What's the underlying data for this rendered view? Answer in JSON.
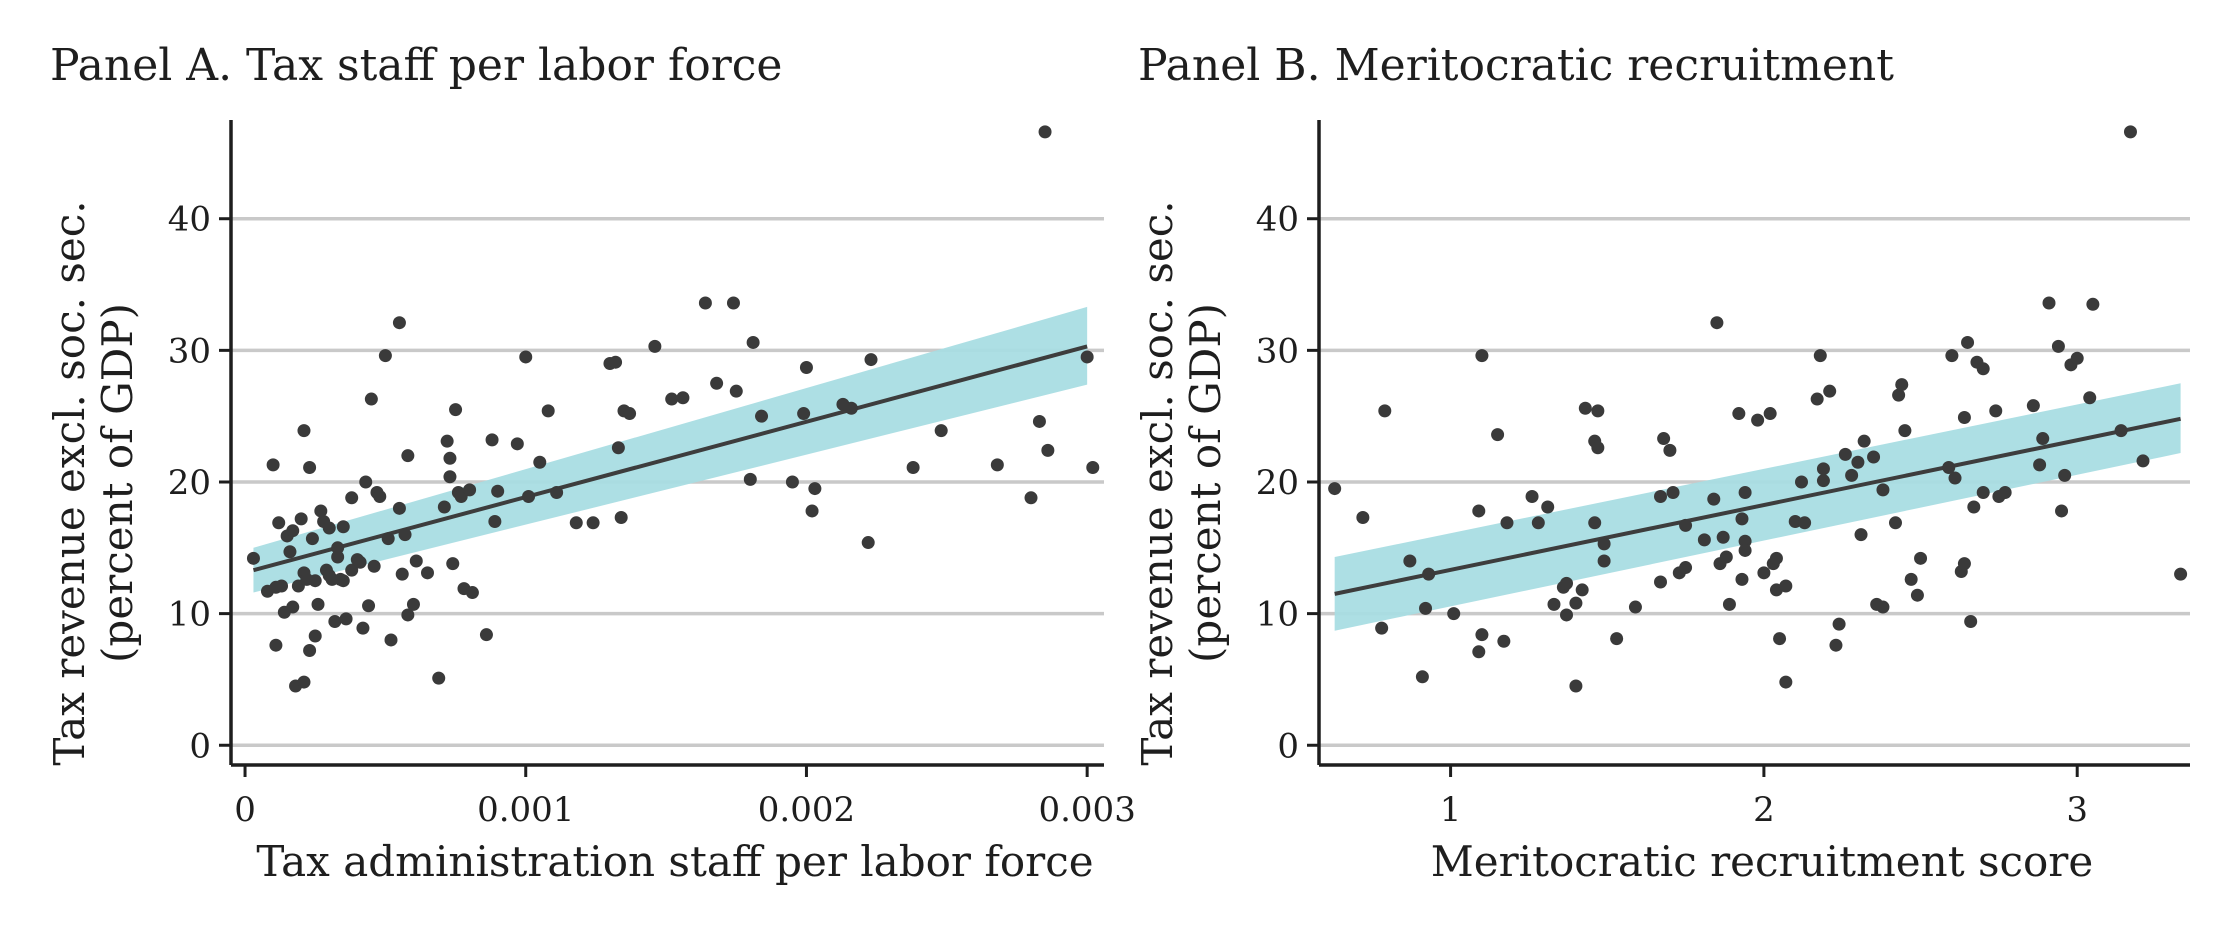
{
  "chart_data": [
    {
      "type": "scatter",
      "title": "Panel A. Tax staff per labor force",
      "xlabel": "Tax administration staff per labor force",
      "ylabel": [
        "Tax revenue excl. soc. sec.",
        "(percent of GDP)"
      ],
      "xlim": [
        -5e-05,
        0.00306
      ],
      "ylim": [
        -1.5,
        47.5
      ],
      "xticks": [
        0,
        0.001,
        0.002,
        0.003
      ],
      "xtick_labels": [
        "0",
        "0.001",
        "0.002",
        "0.003"
      ],
      "yticks": [
        0,
        10,
        20,
        30,
        40
      ],
      "ytick_labels": [
        "0",
        "10",
        "20",
        "30",
        "40"
      ],
      "grid": "horizontal",
      "fit": {
        "x": [
          3e-05,
          0.003
        ],
        "y": [
          13.3,
          30.3
        ]
      },
      "band": {
        "x": [
          3e-05,
          0.003
        ],
        "lower": [
          11.6,
          27.4
        ],
        "upper": [
          15.0,
          33.3
        ]
      },
      "points": [
        [
          3e-05,
          14.2
        ],
        [
          8e-05,
          11.7
        ],
        [
          0.0001,
          21.3
        ],
        [
          0.00011,
          12
        ],
        [
          0.00011,
          7.6
        ],
        [
          0.00012,
          16.9
        ],
        [
          0.00013,
          12.1
        ],
        [
          0.00014,
          10.1
        ],
        [
          0.00015,
          15.9
        ],
        [
          0.00016,
          14.7
        ],
        [
          0.00017,
          10.5
        ],
        [
          0.00017,
          16.3
        ],
        [
          0.00018,
          4.5
        ],
        [
          0.00019,
          12.1
        ],
        [
          0.0002,
          17.2
        ],
        [
          0.00021,
          4.8
        ],
        [
          0.00021,
          23.9
        ],
        [
          0.00021,
          13.1
        ],
        [
          0.00022,
          12.6
        ],
        [
          0.00023,
          7.2
        ],
        [
          0.00023,
          21.1
        ],
        [
          0.00024,
          15.7
        ],
        [
          0.00025,
          12.5
        ],
        [
          0.00025,
          8.3
        ],
        [
          0.00026,
          10.7
        ],
        [
          0.00027,
          17.8
        ],
        [
          0.00028,
          17
        ],
        [
          0.00029,
          13.3
        ],
        [
          0.0003,
          12.9
        ],
        [
          0.0003,
          16.5
        ],
        [
          0.00031,
          12.6
        ],
        [
          0.00032,
          9.4
        ],
        [
          0.00033,
          15
        ],
        [
          0.00033,
          14.3
        ],
        [
          0.00034,
          12.6
        ],
        [
          0.00035,
          16.6
        ],
        [
          0.00035,
          12.5
        ],
        [
          0.00036,
          9.6
        ],
        [
          0.00038,
          18.8
        ],
        [
          0.00038,
          13.3
        ],
        [
          0.0004,
          14.1
        ],
        [
          0.00041,
          13.9
        ],
        [
          0.00042,
          8.9
        ],
        [
          0.00043,
          20
        ],
        [
          0.00044,
          10.6
        ],
        [
          0.00045,
          26.3
        ],
        [
          0.00046,
          13.6
        ],
        [
          0.00047,
          19.2
        ],
        [
          0.00048,
          18.9
        ],
        [
          0.0005,
          29.6
        ],
        [
          0.00051,
          15.7
        ],
        [
          0.00052,
          8
        ],
        [
          0.00055,
          32.1
        ],
        [
          0.00055,
          18
        ],
        [
          0.00056,
          13
        ],
        [
          0.00057,
          16
        ],
        [
          0.00058,
          9.9
        ],
        [
          0.00058,
          22
        ],
        [
          0.0006,
          10.7
        ],
        [
          0.00061,
          14
        ],
        [
          0.00065,
          13.1
        ],
        [
          0.00069,
          5.1
        ],
        [
          0.00071,
          18.1
        ],
        [
          0.00072,
          23.1
        ],
        [
          0.00073,
          21.8
        ],
        [
          0.00073,
          20.4
        ],
        [
          0.00074,
          13.8
        ],
        [
          0.00075,
          25.5
        ],
        [
          0.00076,
          19.2
        ],
        [
          0.00077,
          18.9
        ],
        [
          0.00078,
          11.9
        ],
        [
          0.0008,
          19.4
        ],
        [
          0.00081,
          11.6
        ],
        [
          0.00086,
          8.4
        ],
        [
          0.00088,
          23.2
        ],
        [
          0.00089,
          17
        ],
        [
          0.0009,
          19.3
        ],
        [
          0.00097,
          22.9
        ],
        [
          0.001,
          29.5
        ],
        [
          0.00101,
          18.9
        ],
        [
          0.00105,
          21.5
        ],
        [
          0.00108,
          25.4
        ],
        [
          0.00111,
          19.2
        ],
        [
          0.00118,
          16.9
        ],
        [
          0.00124,
          16.9
        ],
        [
          0.0013,
          29
        ],
        [
          0.00132,
          29.1
        ],
        [
          0.00133,
          22.6
        ],
        [
          0.00134,
          17.3
        ],
        [
          0.00135,
          25.4
        ],
        [
          0.00137,
          25.2
        ],
        [
          0.00146,
          30.3
        ],
        [
          0.00152,
          26.3
        ],
        [
          0.00156,
          26.4
        ],
        [
          0.00164,
          33.6
        ],
        [
          0.00168,
          27.5
        ],
        [
          0.00174,
          33.6
        ],
        [
          0.00175,
          26.9
        ],
        [
          0.0018,
          20.2
        ],
        [
          0.00181,
          30.6
        ],
        [
          0.00184,
          25
        ],
        [
          0.00195,
          20
        ],
        [
          0.00199,
          25.2
        ],
        [
          0.002,
          28.7
        ],
        [
          0.00202,
          17.8
        ],
        [
          0.00203,
          19.5
        ],
        [
          0.00213,
          25.9
        ],
        [
          0.00216,
          25.6
        ],
        [
          0.00222,
          15.4
        ],
        [
          0.00223,
          29.3
        ],
        [
          0.00238,
          21.1
        ],
        [
          0.00248,
          23.9
        ],
        [
          0.00268,
          21.3
        ],
        [
          0.0028,
          18.8
        ],
        [
          0.00283,
          24.6
        ],
        [
          0.00285,
          46.6
        ],
        [
          0.00286,
          22.4
        ],
        [
          0.003,
          29.5
        ],
        [
          0.00302,
          21.1
        ]
      ]
    },
    {
      "type": "scatter",
      "title": "Panel B. Meritocratic recruitment",
      "xlabel": "Meritocratic recruitment score",
      "ylabel": [
        "Tax revenue excl. soc. sec.",
        "(percent of GDP)"
      ],
      "xlim": [
        0.58,
        3.36
      ],
      "ylim": [
        -1.5,
        47.5
      ],
      "xticks": [
        1,
        2,
        3
      ],
      "xtick_labels": [
        "1",
        "2",
        "3"
      ],
      "yticks": [
        0,
        10,
        20,
        30,
        40
      ],
      "ytick_labels": [
        "0",
        "10",
        "20",
        "30",
        "40"
      ],
      "grid": "horizontal",
      "fit": {
        "x": [
          0.63,
          3.33
        ],
        "y": [
          11.5,
          24.8
        ]
      },
      "band": {
        "x": [
          0.63,
          3.33
        ],
        "lower": [
          8.7,
          22.2
        ],
        "upper": [
          14.3,
          27.5
        ]
      },
      "points": [
        [
          0.63,
          19.5
        ],
        [
          0.72,
          17.3
        ],
        [
          0.78,
          8.9
        ],
        [
          0.79,
          25.4
        ],
        [
          0.87,
          14
        ],
        [
          0.91,
          5.2
        ],
        [
          0.92,
          10.4
        ],
        [
          0.93,
          13
        ],
        [
          1.01,
          10
        ],
        [
          1.09,
          7.1
        ],
        [
          1.09,
          17.8
        ],
        [
          1.1,
          29.6
        ],
        [
          1.1,
          8.4
        ],
        [
          1.15,
          23.6
        ],
        [
          1.17,
          7.9
        ],
        [
          1.18,
          16.9
        ],
        [
          1.26,
          18.9
        ],
        [
          1.28,
          16.9
        ],
        [
          1.31,
          18.1
        ],
        [
          1.33,
          10.7
        ],
        [
          1.36,
          12
        ],
        [
          1.37,
          9.9
        ],
        [
          1.37,
          12.3
        ],
        [
          1.4,
          4.5
        ],
        [
          1.4,
          10.8
        ],
        [
          1.42,
          11.8
        ],
        [
          1.43,
          25.6
        ],
        [
          1.46,
          16.9
        ],
        [
          1.46,
          23.1
        ],
        [
          1.47,
          22.6
        ],
        [
          1.47,
          25.4
        ],
        [
          1.49,
          14
        ],
        [
          1.49,
          15.3
        ],
        [
          1.53,
          8.1
        ],
        [
          1.59,
          10.5
        ],
        [
          1.67,
          12.4
        ],
        [
          1.67,
          18.9
        ],
        [
          1.68,
          23.3
        ],
        [
          1.7,
          22.4
        ],
        [
          1.71,
          19.2
        ],
        [
          1.73,
          13.1
        ],
        [
          1.75,
          16.7
        ],
        [
          1.75,
          13.5
        ],
        [
          1.81,
          15.6
        ],
        [
          1.84,
          18.7
        ],
        [
          1.85,
          32.1
        ],
        [
          1.86,
          13.8
        ],
        [
          1.87,
          15.8
        ],
        [
          1.88,
          14.3
        ],
        [
          1.89,
          10.7
        ],
        [
          1.92,
          25.2
        ],
        [
          1.93,
          17.2
        ],
        [
          1.93,
          12.6
        ],
        [
          1.94,
          19.2
        ],
        [
          1.94,
          15.5
        ],
        [
          1.94,
          14.8
        ],
        [
          1.98,
          24.7
        ],
        [
          2.0,
          13.1
        ],
        [
          2.02,
          25.2
        ],
        [
          2.03,
          13.8
        ],
        [
          2.04,
          14.2
        ],
        [
          2.04,
          11.8
        ],
        [
          2.05,
          8.1
        ],
        [
          2.07,
          4.8
        ],
        [
          2.07,
          12.1
        ],
        [
          2.1,
          17
        ],
        [
          2.12,
          20
        ],
        [
          2.13,
          16.9
        ],
        [
          2.17,
          26.3
        ],
        [
          2.18,
          29.6
        ],
        [
          2.19,
          21
        ],
        [
          2.19,
          20.1
        ],
        [
          2.21,
          26.9
        ],
        [
          2.23,
          7.6
        ],
        [
          2.24,
          9.2
        ],
        [
          2.26,
          22.1
        ],
        [
          2.28,
          20.5
        ],
        [
          2.3,
          21.5
        ],
        [
          2.31,
          16
        ],
        [
          2.32,
          23.1
        ],
        [
          2.35,
          21.9
        ],
        [
          2.36,
          10.7
        ],
        [
          2.38,
          10.5
        ],
        [
          2.38,
          19.4
        ],
        [
          2.42,
          16.9
        ],
        [
          2.43,
          26.6
        ],
        [
          2.44,
          27.4
        ],
        [
          2.45,
          23.9
        ],
        [
          2.47,
          12.6
        ],
        [
          2.49,
          11.4
        ],
        [
          2.5,
          14.2
        ],
        [
          2.59,
          21.1
        ],
        [
          2.6,
          29.6
        ],
        [
          2.61,
          20.3
        ],
        [
          2.63,
          13.2
        ],
        [
          2.64,
          13.8
        ],
        [
          2.64,
          24.9
        ],
        [
          2.65,
          30.6
        ],
        [
          2.66,
          9.4
        ],
        [
          2.67,
          18.1
        ],
        [
          2.68,
          29.1
        ],
        [
          2.7,
          19.2
        ],
        [
          2.7,
          28.6
        ],
        [
          2.74,
          25.4
        ],
        [
          2.75,
          18.9
        ],
        [
          2.77,
          19.2
        ],
        [
          2.86,
          25.8
        ],
        [
          2.88,
          21.3
        ],
        [
          2.89,
          23.3
        ],
        [
          2.91,
          33.6
        ],
        [
          2.94,
          30.3
        ],
        [
          2.95,
          17.8
        ],
        [
          2.96,
          20.5
        ],
        [
          2.98,
          28.9
        ],
        [
          3.0,
          29.4
        ],
        [
          3.04,
          26.4
        ],
        [
          3.05,
          33.5
        ],
        [
          3.14,
          23.9
        ],
        [
          3.17,
          46.6
        ],
        [
          3.21,
          21.6
        ],
        [
          3.33,
          13
        ]
      ]
    }
  ]
}
